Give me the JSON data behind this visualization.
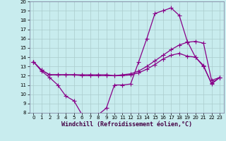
{
  "xlabel": "Windchill (Refroidissement éolien,°C)",
  "xlim": [
    -0.5,
    23.5
  ],
  "ylim": [
    8,
    20
  ],
  "xticks": [
    0,
    1,
    2,
    3,
    4,
    5,
    6,
    7,
    8,
    9,
    10,
    11,
    12,
    13,
    14,
    15,
    16,
    17,
    18,
    19,
    20,
    21,
    22,
    23
  ],
  "yticks": [
    8,
    9,
    10,
    11,
    12,
    13,
    14,
    15,
    16,
    17,
    18,
    19,
    20
  ],
  "bg_color": "#c8ecee",
  "line_color": "#880088",
  "grid_color": "#aacccc",
  "line1_x": [
    0,
    1,
    2,
    3,
    4,
    5,
    6,
    7,
    8,
    9,
    10,
    11,
    12,
    13,
    14,
    15,
    16,
    17,
    18,
    19,
    20,
    21,
    22,
    23
  ],
  "line1_y": [
    13.5,
    12.5,
    11.8,
    11.0,
    9.8,
    9.3,
    7.8,
    7.7,
    7.8,
    8.5,
    11.0,
    11.0,
    11.1,
    13.5,
    16.0,
    18.7,
    19.0,
    19.3,
    18.5,
    15.7,
    14.0,
    13.0,
    11.2,
    11.8
  ],
  "line2_x": [
    0,
    1,
    2,
    3,
    4,
    5,
    6,
    7,
    8,
    9,
    10,
    11,
    12,
    13,
    14,
    15,
    16,
    17,
    18,
    19,
    20,
    21,
    22,
    23
  ],
  "line2_y": [
    13.5,
    12.6,
    12.1,
    12.1,
    12.1,
    12.1,
    12.0,
    12.0,
    12.0,
    12.0,
    12.0,
    12.1,
    12.2,
    12.5,
    13.0,
    13.6,
    14.2,
    14.8,
    15.3,
    15.6,
    15.7,
    15.5,
    11.5,
    11.8
  ],
  "line3_x": [
    0,
    1,
    2,
    3,
    4,
    5,
    6,
    7,
    8,
    9,
    10,
    11,
    12,
    13,
    14,
    15,
    16,
    17,
    18,
    19,
    20,
    21,
    22,
    23
  ],
  "line3_y": [
    13.5,
    12.6,
    12.1,
    12.1,
    12.1,
    12.1,
    12.1,
    12.1,
    12.1,
    12.1,
    12.0,
    12.0,
    12.1,
    12.3,
    12.7,
    13.2,
    13.8,
    14.2,
    14.4,
    14.1,
    14.0,
    13.1,
    11.1,
    11.8
  ],
  "tick_fontsize": 5.0,
  "xlabel_fontsize": 6.0,
  "lw": 0.9,
  "marker_size": 2.0
}
